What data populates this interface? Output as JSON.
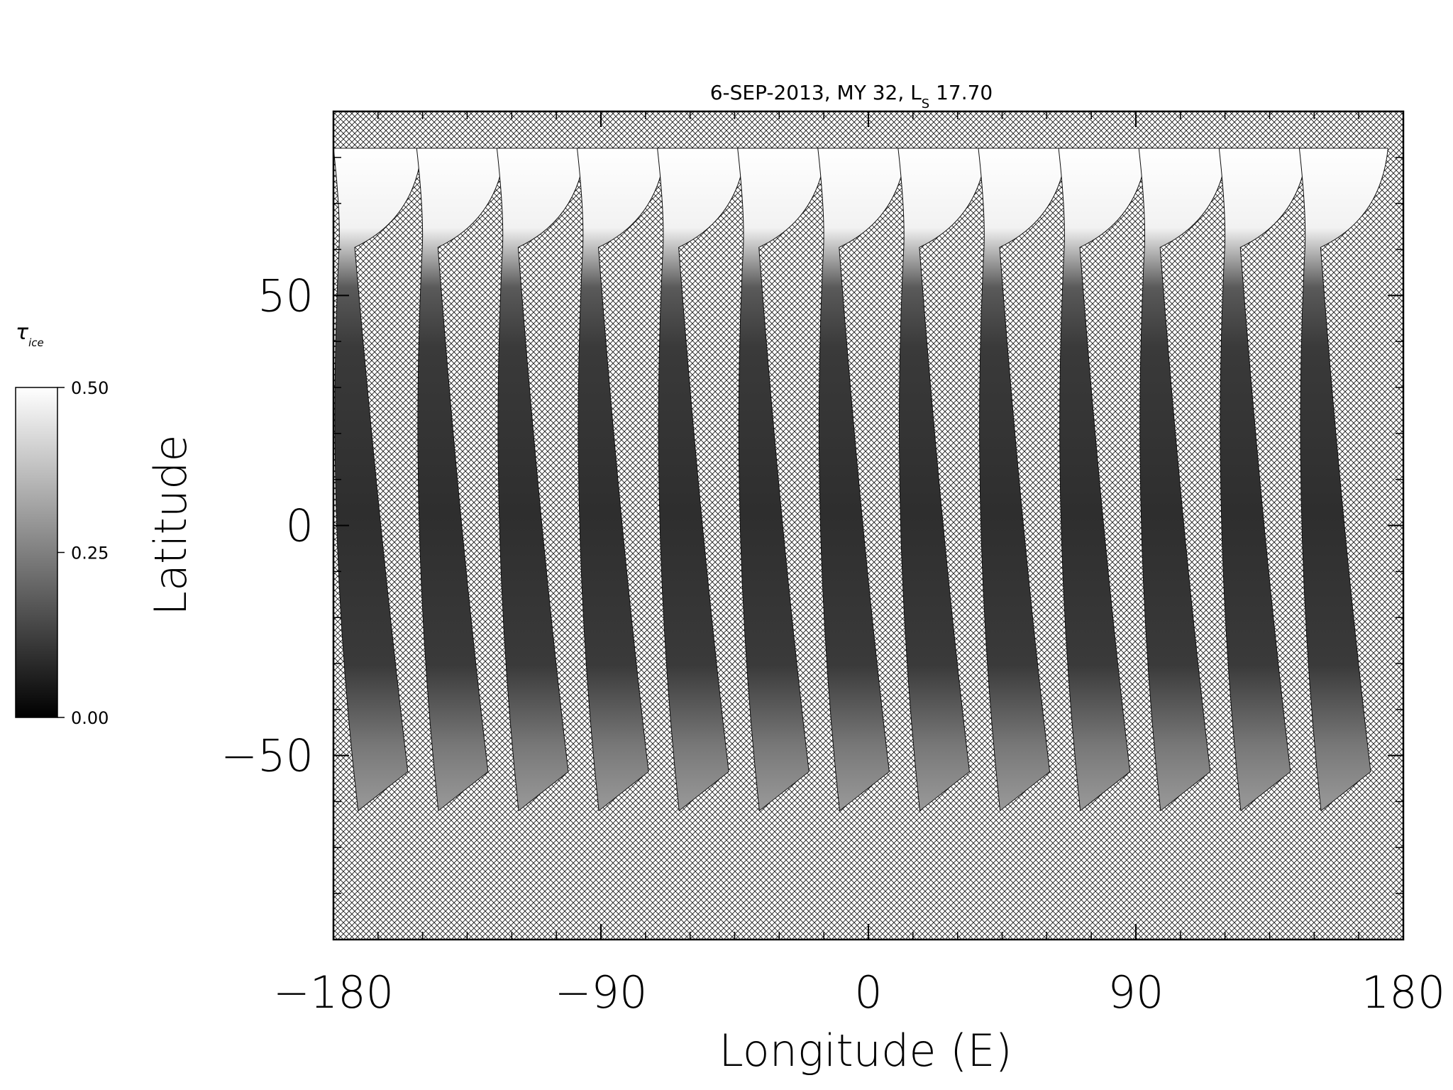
{
  "title": {
    "prefix": "6-SEP-2013, MY 32,  L",
    "subscript": "S",
    "suffix": " 17.70"
  },
  "x_axis": {
    "label": "Longitude (E)",
    "ticks": [
      -180,
      -90,
      0,
      90,
      180
    ],
    "tick_labels": [
      "−180",
      "−90",
      "0",
      "90",
      "180"
    ],
    "range": [
      -180,
      180
    ]
  },
  "y_axis": {
    "label": "Latitude",
    "ticks": [
      -50,
      0,
      50
    ],
    "tick_labels": [
      "−50",
      "0",
      "50"
    ],
    "range": [
      -90,
      90
    ]
  },
  "colorbar": {
    "symbol": "τ",
    "subscript": "ice",
    "ticks": [
      0.0,
      0.25,
      0.5
    ],
    "tick_labels": [
      "0.00",
      "0.25",
      "0.50"
    ],
    "colormap": "grayscale"
  },
  "chart_data": {
    "type": "heatmap",
    "title": "6-SEP-2013, MY 32,  Ls 17.70",
    "xlabel": "Longitude (E)",
    "ylabel": "Latitude",
    "xlim": [
      -180,
      180
    ],
    "ylim": [
      -90,
      90
    ],
    "value_label": "τ ice",
    "value_range": [
      0.0,
      0.5
    ],
    "no_data_fill": "crosshatch",
    "data_coverage_lat": [
      -62,
      82
    ],
    "north_polar_cap_lat": [
      62,
      82
    ],
    "north_polar_cap_tau": 0.5,
    "typical_swath_tau": 0.1,
    "swath_count": 13,
    "swath_south_end_lon": [
      -160,
      -133,
      -106,
      -79,
      -52,
      -25,
      2,
      29,
      56,
      83,
      110,
      137,
      164
    ],
    "swath_north_end_lon": [
      -180,
      -152,
      -125,
      -98,
      -71,
      -44,
      -17,
      10,
      37,
      64,
      91,
      118,
      145
    ]
  }
}
